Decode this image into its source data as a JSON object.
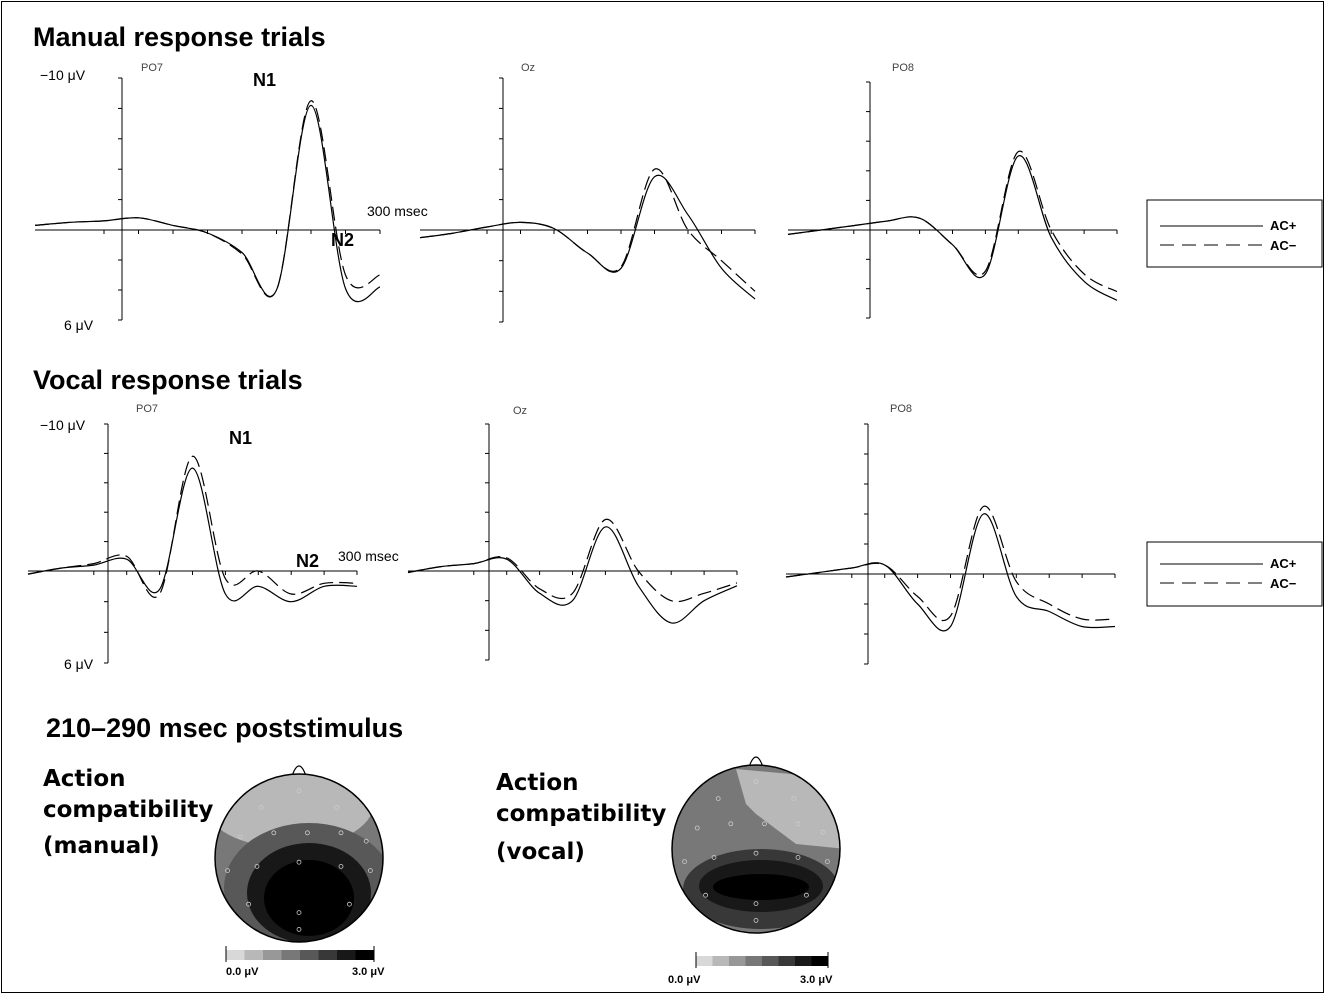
{
  "chart_data": [
    {
      "type": "line",
      "title": "Manual response trials",
      "ylim_labels": [
        "−10 μV",
        "6 μV"
      ],
      "ylim": [
        -10,
        6
      ],
      "x_marker_label": "300 msec",
      "legend": [
        "AC+",
        "AC−"
      ],
      "peaks": [
        "N1",
        "N2"
      ],
      "channels": [
        {
          "name": "PO7",
          "x": [
            -100,
            -50,
            0,
            50,
            100,
            150,
            200,
            250,
            300,
            350,
            400
          ],
          "series": [
            {
              "name": "AC+",
              "values": [
                -0.3,
                -0.5,
                -0.6,
                -0.8,
                -0.3,
                0.2,
                1.5,
                4.0,
                -8.2,
                3.9,
                3.8
              ]
            },
            {
              "name": "AC−",
              "values": [
                -0.3,
                -0.5,
                -0.6,
                -0.8,
                -0.3,
                0.2,
                1.6,
                4.0,
                -8.5,
                3.0,
                3.0
              ]
            }
          ]
        },
        {
          "name": "Oz",
          "x": [
            -100,
            -50,
            0,
            50,
            100,
            150,
            200,
            250,
            300,
            350,
            400
          ],
          "series": [
            {
              "name": "AC+",
              "values": [
                0.5,
                0.2,
                -0.2,
                -0.5,
                -0.1,
                1.5,
                2.5,
                -3.5,
                -1.0,
                2.5,
                4.5
              ]
            },
            {
              "name": "AC−",
              "values": [
                0.5,
                0.2,
                -0.2,
                -0.5,
                -0.1,
                1.5,
                2.4,
                -4.0,
                0.0,
                2.0,
                4.0
              ]
            }
          ]
        },
        {
          "name": "PO8",
          "x": [
            -100,
            -50,
            0,
            50,
            100,
            150,
            200,
            250,
            300,
            350,
            400
          ],
          "series": [
            {
              "name": "AC+",
              "values": [
                0.3,
                0.0,
                -0.3,
                -0.6,
                -0.8,
                1.0,
                3.0,
                -5.0,
                0.5,
                3.5,
                4.8
              ]
            },
            {
              "name": "AC−",
              "values": [
                0.3,
                0.0,
                -0.3,
                -0.6,
                -0.8,
                1.0,
                2.8,
                -5.3,
                0.0,
                3.0,
                4.2
              ]
            }
          ]
        }
      ]
    },
    {
      "type": "line",
      "title": "Vocal response trials",
      "ylim_labels": [
        "−10 μV",
        "6 μV"
      ],
      "ylim": [
        -10,
        6
      ],
      "x_marker_label": "300 msec",
      "legend": [
        "AC+",
        "AC−"
      ],
      "peaks": [
        "N1",
        "N2"
      ],
      "channels": [
        {
          "name": "PO7",
          "x": [
            -100,
            -50,
            0,
            50,
            100,
            150,
            200,
            250,
            300,
            350,
            400
          ],
          "series": [
            {
              "name": "AC+",
              "values": [
                0.2,
                -0.2,
                -0.4,
                -0.8,
                1.2,
                -7.0,
                1.5,
                1.0,
                2.0,
                1.0,
                1.0
              ]
            },
            {
              "name": "AC−",
              "values": [
                0.2,
                -0.2,
                -0.5,
                -1.0,
                1.5,
                -7.8,
                0.5,
                0.0,
                1.5,
                0.8,
                0.8
              ]
            }
          ]
        },
        {
          "name": "Oz",
          "x": [
            -100,
            -50,
            0,
            50,
            100,
            150,
            200,
            250,
            300,
            350,
            400
          ],
          "series": [
            {
              "name": "AC+",
              "values": [
                0.1,
                -0.3,
                -0.5,
                -0.8,
                1.5,
                2.0,
                -3.0,
                1.0,
                3.5,
                2.0,
                1.0
              ]
            },
            {
              "name": "AC−",
              "values": [
                0.1,
                -0.3,
                -0.5,
                -0.9,
                1.2,
                1.5,
                -3.5,
                0.0,
                2.0,
                1.5,
                0.8
              ]
            }
          ]
        },
        {
          "name": "PO8",
          "x": [
            -100,
            -50,
            0,
            50,
            100,
            150,
            200,
            250,
            300,
            350,
            400
          ],
          "series": [
            {
              "name": "AC+",
              "values": [
                0.2,
                -0.1,
                -0.4,
                -0.6,
                2.0,
                3.5,
                -4.0,
                1.5,
                2.5,
                3.5,
                3.5
              ]
            },
            {
              "name": "AC−",
              "values": [
                0.2,
                -0.1,
                -0.4,
                -0.6,
                1.5,
                2.8,
                -4.5,
                0.5,
                2.0,
                3.0,
                3.0
              ]
            }
          ]
        }
      ]
    },
    {
      "type": "heatmap",
      "title": "210–290 msec poststimulus",
      "maps": [
        {
          "label_lines": [
            "Action",
            "compatibility",
            "(manual)"
          ],
          "scale_labels": [
            "0.0 μV",
            "3.0 μV"
          ]
        },
        {
          "label_lines": [
            "Action",
            "compatibility",
            "(vocal)"
          ],
          "scale_labels": [
            "0.0 μV",
            "3.0 μV"
          ]
        }
      ],
      "scale_colors": [
        "#d8d8d8",
        "#b8b8b8",
        "#989898",
        "#787878",
        "#585858",
        "#383838",
        "#181818",
        "#000000"
      ]
    }
  ]
}
